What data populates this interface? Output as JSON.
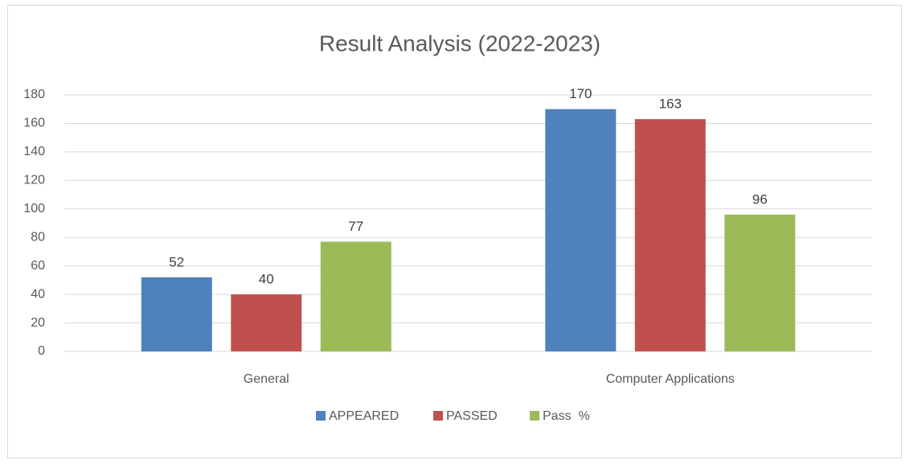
{
  "chart_data": {
    "type": "bar",
    "title": "Result Analysis (2022-2023)",
    "categories": [
      "General",
      "Computer Applications"
    ],
    "series": [
      {
        "name": "APPEARED",
        "color": "#4f81bd",
        "values": [
          52,
          170
        ]
      },
      {
        "name": "PASSED",
        "color": "#c0504d",
        "values": [
          40,
          163
        ]
      },
      {
        "name": "Pass  %",
        "color": "#9bbb59",
        "values": [
          77,
          96
        ]
      }
    ],
    "ylim": [
      0,
      180
    ],
    "yticks": [
      0,
      20,
      40,
      60,
      80,
      100,
      120,
      140,
      160,
      180
    ],
    "grid": true,
    "legend": "bottom",
    "data_labels": true
  }
}
